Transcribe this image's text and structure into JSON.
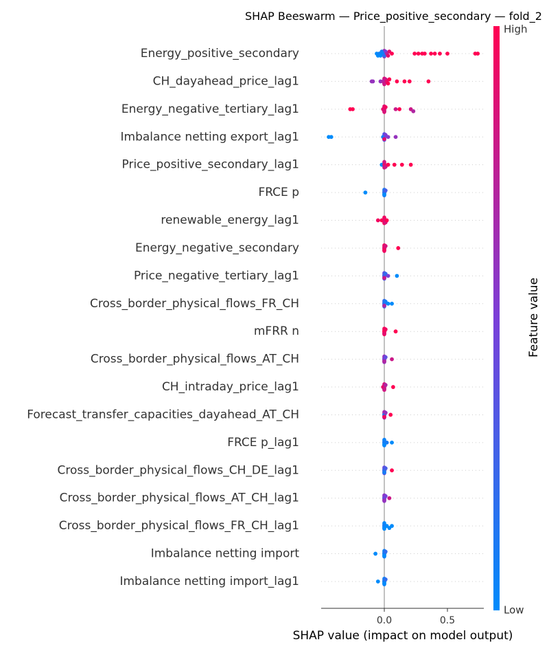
{
  "chart_data": {
    "type": "scatter",
    "subtype": "shap-beeswarm",
    "title": "SHAP Beeswarm — Price_positive_secondary — fold_2",
    "xlabel": "SHAP value (impact on model output)",
    "xlim": [
      -0.5,
      0.8
    ],
    "xticks": [
      0.0,
      0.5
    ],
    "xtick_labels": [
      "0.0",
      "0.5"
    ],
    "colorbar": {
      "label": "Feature value",
      "high_label": "High",
      "low_label": "Low",
      "low_color": "#008bfb",
      "mid_color": "#7a3fd8",
      "high_color": "#ff0052"
    },
    "features": [
      {
        "name": "Energy_positive_secondary",
        "points": [
          {
            "x": -0.06,
            "v": 0.0
          },
          {
            "x": -0.05,
            "v": 0.0
          },
          {
            "x": -0.04,
            "v": 0.05
          },
          {
            "x": -0.03,
            "v": 0.0
          },
          {
            "x": -0.02,
            "v": 0.1
          },
          {
            "x": -0.01,
            "v": 0.05
          },
          {
            "x": 0.0,
            "v": 0.2
          },
          {
            "x": 0.01,
            "v": 0.5
          },
          {
            "x": 0.02,
            "v": 0.7
          },
          {
            "x": 0.03,
            "v": 0.9
          },
          {
            "x": 0.04,
            "v": 0.9
          },
          {
            "x": 0.06,
            "v": 1.0
          },
          {
            "x": 0.24,
            "v": 1.0
          },
          {
            "x": 0.27,
            "v": 1.0
          },
          {
            "x": 0.3,
            "v": 1.0
          },
          {
            "x": 0.32,
            "v": 1.0
          },
          {
            "x": 0.37,
            "v": 1.0
          },
          {
            "x": 0.4,
            "v": 1.0
          },
          {
            "x": 0.44,
            "v": 1.0
          },
          {
            "x": 0.5,
            "v": 1.0
          },
          {
            "x": 0.72,
            "v": 1.0
          },
          {
            "x": 0.74,
            "v": 1.0
          }
        ]
      },
      {
        "name": "CH_dayahead_price_lag1",
        "points": [
          {
            "x": -0.1,
            "v": 0.6
          },
          {
            "x": -0.09,
            "v": 0.6
          },
          {
            "x": -0.03,
            "v": 0.6
          },
          {
            "x": -0.01,
            "v": 0.7
          },
          {
            "x": 0.0,
            "v": 0.8
          },
          {
            "x": 0.01,
            "v": 0.8
          },
          {
            "x": 0.02,
            "v": 0.9
          },
          {
            "x": 0.03,
            "v": 1.0
          },
          {
            "x": 0.04,
            "v": 1.0
          },
          {
            "x": 0.1,
            "v": 1.0
          },
          {
            "x": 0.16,
            "v": 1.0
          },
          {
            "x": 0.2,
            "v": 1.0
          },
          {
            "x": 0.35,
            "v": 1.0
          }
        ]
      },
      {
        "name": "Energy_negative_tertiary_lag1",
        "points": [
          {
            "x": -0.27,
            "v": 1.0
          },
          {
            "x": -0.25,
            "v": 1.0
          },
          {
            "x": -0.01,
            "v": 0.9
          },
          {
            "x": 0.0,
            "v": 0.85
          },
          {
            "x": 0.01,
            "v": 0.95
          },
          {
            "x": 0.09,
            "v": 0.8
          },
          {
            "x": 0.12,
            "v": 1.0
          },
          {
            "x": 0.21,
            "v": 0.8
          },
          {
            "x": 0.23,
            "v": 0.7
          }
        ]
      },
      {
        "name": "Imbalance netting export_lag1",
        "points": [
          {
            "x": -0.44,
            "v": 0.0
          },
          {
            "x": -0.42,
            "v": 0.0
          },
          {
            "x": -0.01,
            "v": 0.1
          },
          {
            "x": 0.0,
            "v": 0.9
          },
          {
            "x": 0.01,
            "v": 0.5
          },
          {
            "x": 0.03,
            "v": 0.55
          },
          {
            "x": 0.09,
            "v": 0.6
          }
        ]
      },
      {
        "name": "Price_positive_secondary_lag1",
        "points": [
          {
            "x": -0.02,
            "v": 0.0
          },
          {
            "x": 0.0,
            "v": 0.9
          },
          {
            "x": 0.01,
            "v": 0.8
          },
          {
            "x": 0.03,
            "v": 1.0
          },
          {
            "x": 0.08,
            "v": 1.0
          },
          {
            "x": 0.14,
            "v": 1.0
          },
          {
            "x": 0.21,
            "v": 1.0
          }
        ]
      },
      {
        "name": "FRCE p",
        "points": [
          {
            "x": -0.15,
            "v": 0.0
          },
          {
            "x": 0.0,
            "v": 0.2
          },
          {
            "x": 0.0,
            "v": 0.0
          },
          {
            "x": 0.01,
            "v": 0.3
          }
        ]
      },
      {
        "name": "renewable_energy_lag1",
        "points": [
          {
            "x": -0.05,
            "v": 0.95
          },
          {
            "x": -0.02,
            "v": 1.0
          },
          {
            "x": 0.0,
            "v": 0.9
          },
          {
            "x": 0.01,
            "v": 0.85
          },
          {
            "x": 0.02,
            "v": 1.0
          }
        ]
      },
      {
        "name": "Energy_negative_secondary",
        "points": [
          {
            "x": 0.0,
            "v": 0.9
          },
          {
            "x": 0.0,
            "v": 0.95
          },
          {
            "x": 0.01,
            "v": 0.85
          },
          {
            "x": 0.11,
            "v": 1.0
          }
        ]
      },
      {
        "name": "Price_negative_tertiary_lag1",
        "points": [
          {
            "x": 0.0,
            "v": 0.3
          },
          {
            "x": 0.0,
            "v": 0.8
          },
          {
            "x": 0.01,
            "v": 0.2
          },
          {
            "x": 0.03,
            "v": 0.5
          },
          {
            "x": 0.1,
            "v": 0.0
          }
        ]
      },
      {
        "name": "Cross_border_physical_flows_FR_CH",
        "points": [
          {
            "x": 0.0,
            "v": 0.2
          },
          {
            "x": 0.0,
            "v": 0.7
          },
          {
            "x": 0.01,
            "v": 0.1
          },
          {
            "x": 0.03,
            "v": 0.0
          },
          {
            "x": 0.06,
            "v": 0.0
          }
        ]
      },
      {
        "name": "mFRR n",
        "points": [
          {
            "x": 0.0,
            "v": 1.0
          },
          {
            "x": 0.0,
            "v": 0.9
          },
          {
            "x": 0.01,
            "v": 0.95
          },
          {
            "x": 0.09,
            "v": 1.0
          }
        ]
      },
      {
        "name": "Cross_border_physical_flows_AT_CH",
        "points": [
          {
            "x": 0.0,
            "v": 0.5
          },
          {
            "x": 0.0,
            "v": 0.7
          },
          {
            "x": 0.01,
            "v": 0.4
          },
          {
            "x": 0.06,
            "v": 0.8
          }
        ]
      },
      {
        "name": "CH_intraday_price_lag1",
        "points": [
          {
            "x": -0.01,
            "v": 0.9
          },
          {
            "x": 0.0,
            "v": 0.8
          },
          {
            "x": 0.01,
            "v": 0.7
          },
          {
            "x": 0.07,
            "v": 1.0
          }
        ]
      },
      {
        "name": "Forecast_transfer_capacities_dayahead_AT_CH",
        "points": [
          {
            "x": 0.0,
            "v": 0.1
          },
          {
            "x": 0.0,
            "v": 0.95
          },
          {
            "x": 0.01,
            "v": 0.6
          },
          {
            "x": 0.05,
            "v": 1.0
          }
        ]
      },
      {
        "name": "FRCE p_lag1",
        "points": [
          {
            "x": 0.0,
            "v": 0.1
          },
          {
            "x": 0.0,
            "v": 0.0
          },
          {
            "x": 0.02,
            "v": 0.1
          },
          {
            "x": 0.06,
            "v": 0.0
          }
        ]
      },
      {
        "name": "Cross_border_physical_flows_CH_DE_lag1",
        "points": [
          {
            "x": 0.0,
            "v": 0.2
          },
          {
            "x": 0.0,
            "v": 0.1
          },
          {
            "x": 0.01,
            "v": 0.3
          },
          {
            "x": 0.06,
            "v": 1.0
          }
        ]
      },
      {
        "name": "Cross_border_physical_flows_AT_CH_lag1",
        "points": [
          {
            "x": 0.0,
            "v": 0.4
          },
          {
            "x": 0.0,
            "v": 0.6
          },
          {
            "x": 0.01,
            "v": 0.5
          },
          {
            "x": 0.04,
            "v": 0.8
          }
        ]
      },
      {
        "name": "Cross_border_physical_flows_FR_CH_lag1",
        "points": [
          {
            "x": 0.0,
            "v": 0.1
          },
          {
            "x": 0.0,
            "v": 0.0
          },
          {
            "x": 0.02,
            "v": 0.0
          },
          {
            "x": 0.04,
            "v": 0.0
          },
          {
            "x": 0.06,
            "v": 0.0
          }
        ]
      },
      {
        "name": "Imbalance netting import",
        "points": [
          {
            "x": -0.07,
            "v": 0.0
          },
          {
            "x": 0.0,
            "v": 0.1
          },
          {
            "x": 0.0,
            "v": 0.0
          },
          {
            "x": 0.01,
            "v": 0.2
          }
        ]
      },
      {
        "name": "Imbalance netting import_lag1",
        "points": [
          {
            "x": -0.05,
            "v": 0.0
          },
          {
            "x": 0.0,
            "v": 0.1
          },
          {
            "x": 0.0,
            "v": 0.0
          },
          {
            "x": 0.01,
            "v": 0.2
          }
        ]
      }
    ]
  }
}
